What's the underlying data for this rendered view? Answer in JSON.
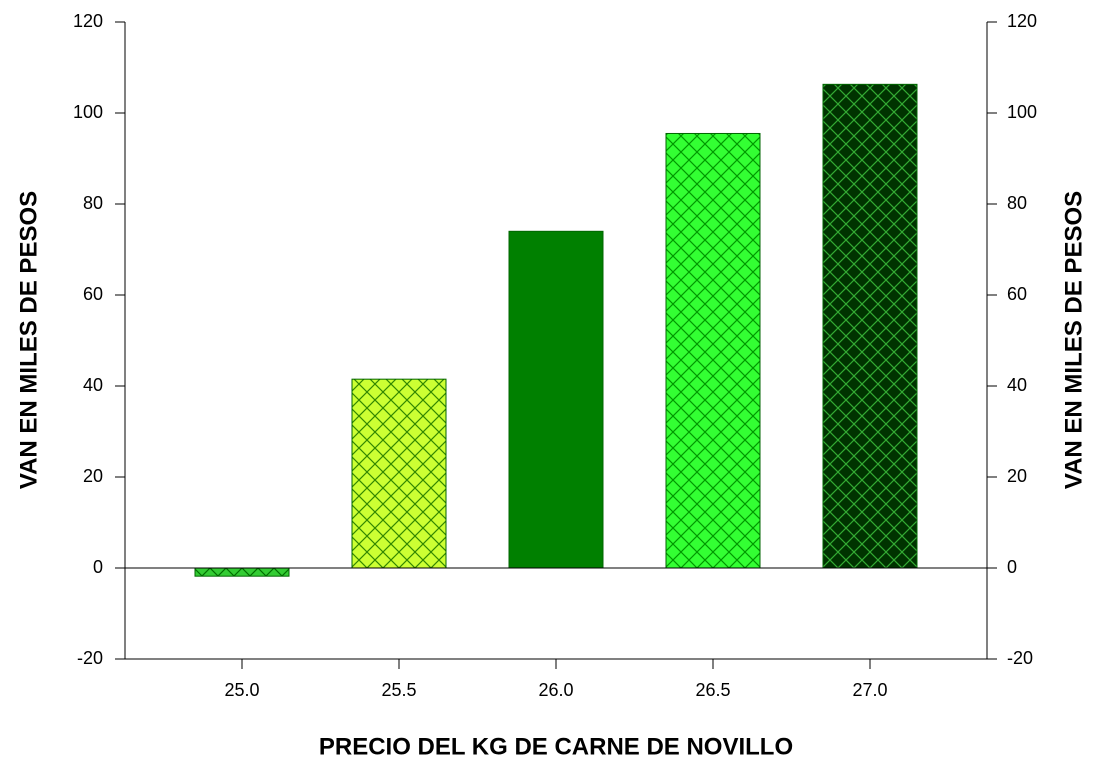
{
  "chart_data": {
    "type": "bar",
    "xlabel": "PRECIO DEL KG DE CARNE DE NOVILLO",
    "ylabel": "VAN EN MILES DE PESOS",
    "y2label": "VAN EN MILES DE PESOS",
    "categories": [
      "25.0",
      "25.5",
      "26.0",
      "26.5",
      "27.0"
    ],
    "values": [
      -1.8,
      41.5,
      74,
      95.5,
      106.3
    ],
    "colors": [
      "#33cc33",
      "#ccff33",
      "#008000",
      "#33ff33",
      "#003300"
    ],
    "hatch_colors": [
      "#007000",
      "#338800",
      null,
      "#009900",
      "#33aa33"
    ],
    "ylim": [
      -20,
      120
    ],
    "yticks": [
      -20,
      0,
      20,
      40,
      60,
      80,
      100,
      120
    ],
    "y2lim": [
      -20,
      120
    ],
    "y2ticks": [
      -20,
      0,
      20,
      40,
      60,
      80,
      100,
      120
    ]
  }
}
